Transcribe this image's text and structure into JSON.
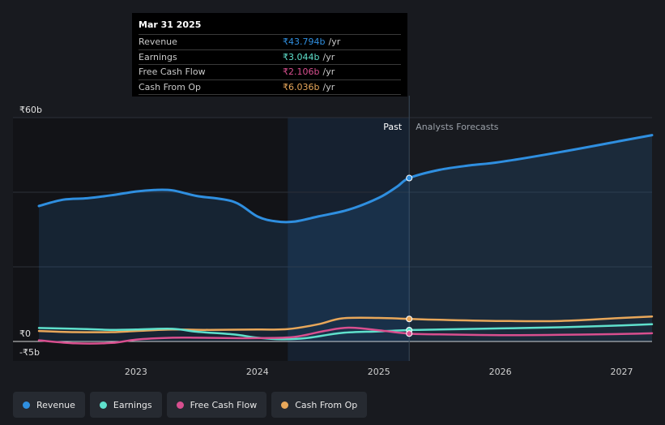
{
  "chart_data": {
    "type": "area",
    "ylim": [
      -5,
      60
    ],
    "y_tick_labels": [
      {
        "value": 60,
        "label": "₹60b"
      },
      {
        "value": 0,
        "label": "₹0"
      },
      {
        "value": -5,
        "label": "-₹5b"
      }
    ],
    "xlim": [
      2022.2,
      2027.25
    ],
    "x_ticks": [
      2023,
      2024,
      2025,
      2026,
      2027
    ],
    "x_tick_labels": [
      "2023",
      "2024",
      "2025",
      "2026",
      "2027"
    ],
    "divider_x": 2025.25,
    "shade_start": 2024.25,
    "past_label": "Past",
    "forecast_label": "Analysts Forecasts",
    "series": [
      {
        "name": "Revenue",
        "color": "#2f8fe0",
        "area": true,
        "points": [
          [
            2022.2,
            36.3
          ],
          [
            2022.4,
            38.0
          ],
          [
            2022.6,
            38.4
          ],
          [
            2022.8,
            39.2
          ],
          [
            2023.0,
            40.2
          ],
          [
            2023.15,
            40.6
          ],
          [
            2023.3,
            40.5
          ],
          [
            2023.5,
            39.0
          ],
          [
            2023.8,
            37.5
          ],
          [
            2024.0,
            33.5
          ],
          [
            2024.15,
            32.2
          ],
          [
            2024.3,
            32.1
          ],
          [
            2024.5,
            33.5
          ],
          [
            2024.75,
            35.3
          ],
          [
            2025.0,
            38.5
          ],
          [
            2025.15,
            41.5
          ],
          [
            2025.25,
            43.794
          ],
          [
            2025.5,
            46.0
          ],
          [
            2025.75,
            47.2
          ],
          [
            2026.0,
            48.1
          ],
          [
            2026.5,
            50.8
          ],
          [
            2027.0,
            53.8
          ],
          [
            2027.25,
            55.3
          ]
        ]
      },
      {
        "name": "Earnings",
        "color": "#5fe0cc",
        "points": [
          [
            2022.2,
            3.6
          ],
          [
            2022.5,
            3.4
          ],
          [
            2022.8,
            3.1
          ],
          [
            2023.0,
            3.2
          ],
          [
            2023.3,
            3.4
          ],
          [
            2023.5,
            2.6
          ],
          [
            2023.8,
            1.9
          ],
          [
            2024.0,
            1.0
          ],
          [
            2024.2,
            0.6
          ],
          [
            2024.4,
            0.9
          ],
          [
            2024.7,
            2.3
          ],
          [
            2025.0,
            2.7
          ],
          [
            2025.25,
            3.044
          ],
          [
            2025.5,
            3.2
          ],
          [
            2026.0,
            3.5
          ],
          [
            2026.5,
            3.8
          ],
          [
            2027.0,
            4.3
          ],
          [
            2027.25,
            4.6
          ]
        ]
      },
      {
        "name": "Free Cash Flow",
        "color": "#d84f8f",
        "points": [
          [
            2022.2,
            0.3
          ],
          [
            2022.5,
            -0.5
          ],
          [
            2022.8,
            -0.4
          ],
          [
            2023.0,
            0.5
          ],
          [
            2023.3,
            1.0
          ],
          [
            2023.5,
            1.0
          ],
          [
            2023.8,
            0.9
          ],
          [
            2024.0,
            0.9
          ],
          [
            2024.3,
            1.2
          ],
          [
            2024.55,
            2.8
          ],
          [
            2024.75,
            3.7
          ],
          [
            2025.0,
            3.0
          ],
          [
            2025.25,
            2.106
          ],
          [
            2025.5,
            1.9
          ],
          [
            2026.0,
            1.7
          ],
          [
            2026.5,
            1.8
          ],
          [
            2027.0,
            2.0
          ],
          [
            2027.25,
            2.2
          ]
        ]
      },
      {
        "name": "Cash From Op",
        "color": "#e8a75a",
        "points": [
          [
            2022.2,
            2.8
          ],
          [
            2022.5,
            2.5
          ],
          [
            2022.8,
            2.5
          ],
          [
            2023.0,
            2.8
          ],
          [
            2023.3,
            3.2
          ],
          [
            2023.6,
            3.1
          ],
          [
            2024.0,
            3.2
          ],
          [
            2024.25,
            3.3
          ],
          [
            2024.5,
            4.6
          ],
          [
            2024.7,
            6.2
          ],
          [
            2025.0,
            6.3
          ],
          [
            2025.25,
            6.036
          ],
          [
            2025.5,
            5.8
          ],
          [
            2026.0,
            5.5
          ],
          [
            2026.5,
            5.5
          ],
          [
            2027.0,
            6.3
          ],
          [
            2027.25,
            6.7
          ]
        ]
      }
    ]
  },
  "tooltip": {
    "date": "Mar 31 2025",
    "rows": [
      {
        "label": "Revenue",
        "value": "₹43.794b",
        "unit": "/yr",
        "color": "#2f8fe0"
      },
      {
        "label": "Earnings",
        "value": "₹3.044b",
        "unit": "/yr",
        "color": "#5fe0cc"
      },
      {
        "label": "Free Cash Flow",
        "value": "₹2.106b",
        "unit": "/yr",
        "color": "#d84f8f"
      },
      {
        "label": "Cash From Op",
        "value": "₹6.036b",
        "unit": "/yr",
        "color": "#e8a75a"
      }
    ]
  },
  "legend": [
    {
      "label": "Revenue",
      "color": "#2f8fe0"
    },
    {
      "label": "Earnings",
      "color": "#5fe0cc"
    },
    {
      "label": "Free Cash Flow",
      "color": "#d84f8f"
    },
    {
      "label": "Cash From Op",
      "color": "#e8a75a"
    }
  ]
}
